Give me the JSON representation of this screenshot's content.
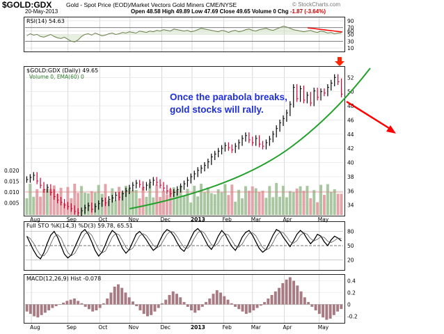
{
  "header": {
    "symbol": "$GOLD:GDX",
    "description": "Gold - Spot Price (EOD)/Market Vectors Gold Miners  CME/NYSE",
    "date": "20-May-2013",
    "ohlc": "Open 48.58  High 49.89  Low 47.69  Close 49.65  Volume 0  Chg",
    "change": "-1.87 (-3.64%)",
    "brand": "© StockCharts.com"
  },
  "annotation": {
    "line1": "Once the parabola breaks,",
    "line2": "gold stocks will rally."
  },
  "colors": {
    "price_up": "#000000",
    "price_down": "#cc0033",
    "volume_up": "#a8c7a0",
    "volume_down": "#e3a3a8",
    "parabola": "#22a02a",
    "arrow": "#ff0000",
    "rsi_line": "#6b7f4b",
    "macd_hist": "#a87a82"
  },
  "chart_data": [
    {
      "type": "line",
      "title": "RSI(14) 54.63",
      "ylim": [
        0,
        100
      ],
      "y_ticks": [
        10,
        30,
        50,
        60,
        70,
        90
      ],
      "series": [
        {
          "name": "RSI(14)",
          "values": [
            46,
            52,
            48,
            50,
            44,
            42,
            46,
            50,
            44,
            40,
            38,
            42,
            36,
            30,
            28,
            34,
            44,
            50,
            52,
            48,
            54,
            50,
            46,
            48,
            52,
            54,
            50,
            52,
            56,
            54,
            58,
            56,
            54,
            60,
            58,
            56,
            60,
            58,
            62,
            60,
            64,
            62,
            60,
            66,
            64,
            62,
            60,
            62,
            58,
            60,
            64,
            68,
            66,
            64,
            62,
            60,
            58,
            62,
            60,
            56,
            60,
            62,
            58,
            60,
            64,
            66,
            62,
            60,
            64,
            66,
            68,
            64,
            62,
            66,
            70,
            74,
            72,
            68,
            64,
            62,
            60,
            58,
            60,
            62,
            58,
            56,
            60,
            58,
            54,
            56,
            52,
            54,
            55
          ]
        }
      ]
    },
    {
      "type": "bar",
      "title": "$GOLD:GDX (Daily) 49.65",
      "subtitle": "Volume 0, EMA(60) 0",
      "x_ticks": [
        "Aug",
        "Sep",
        "Oct",
        "Nov",
        "Dec",
        "2013",
        "Feb",
        "Mar",
        "Apr",
        "May"
      ],
      "y_ticks_right": [
        34,
        36,
        38,
        40,
        42,
        44,
        46,
        48,
        50,
        52
      ],
      "y_ticks_left": [
        "0.020",
        "0.015",
        "0.010",
        "0.005"
      ],
      "ylim": [
        32.5,
        53.5
      ],
      "series": [
        {
          "name": "$GOLD:GDX close",
          "values": [
            37.6,
            37.9,
            38.2,
            37.4,
            36.8,
            36.2,
            36.5,
            35.8,
            35.2,
            34.7,
            34.4,
            34.0,
            33.8,
            33.5,
            33.1,
            32.9,
            33.2,
            33.6,
            33.9,
            33.4,
            33.8,
            34.2,
            34.6,
            34.3,
            34.8,
            35.0,
            35.4,
            35.1,
            35.6,
            36.0,
            36.4,
            36.8,
            37.1,
            36.9,
            36.5,
            36.8,
            37.2,
            37.5,
            37.2,
            36.8,
            36.4,
            36.0,
            35.6,
            35.8,
            36.2,
            36.6,
            37.0,
            37.5,
            38.0,
            38.4,
            38.9,
            39.2,
            39.6,
            40.1,
            40.8,
            41.2,
            41.6,
            42.0,
            42.4,
            42.1,
            41.8,
            42.3,
            42.8,
            43.4,
            43.8,
            43.2,
            42.8,
            43.4,
            42.6,
            42.3,
            42.8,
            43.3,
            44.0,
            44.8,
            45.6,
            46.2,
            47.0,
            48.2,
            50.6,
            49.0,
            50.4,
            48.8,
            49.5,
            48.4,
            50.1,
            49.2,
            50.0,
            49.8,
            50.6,
            51.2,
            52.0,
            51.4,
            49.65
          ]
        }
      ]
    },
    {
      "type": "line",
      "title": "Full STO %K(14,3) %D(3) 59.78, 65.51",
      "ylim": [
        0,
        100
      ],
      "y_ticks": [
        20,
        50,
        80
      ],
      "series": [
        {
          "name": "%K",
          "values": [
            70,
            55,
            40,
            28,
            22,
            35,
            55,
            72,
            80,
            68,
            50,
            32,
            24,
            30,
            46,
            62,
            78,
            84,
            74,
            58,
            40,
            28,
            36,
            52,
            70,
            82,
            76,
            60,
            44,
            34,
            42,
            58,
            74,
            80,
            72,
            62,
            50,
            40,
            46,
            62,
            76,
            84,
            80,
            70,
            56,
            44,
            38,
            50,
            66,
            80,
            86,
            78,
            64,
            50,
            42,
            54,
            70,
            82,
            74,
            60,
            48,
            40,
            52,
            68,
            78,
            82,
            72,
            58,
            44,
            36,
            42,
            56,
            72,
            84,
            80,
            68,
            58,
            48,
            60,
            74,
            82,
            76,
            64,
            54,
            62,
            74,
            70,
            58,
            50,
            62,
            70,
            66,
            59.78
          ]
        }
      ]
    },
    {
      "type": "bar",
      "title": "MACD(12,26,9) Hist -0.078",
      "y_ticks": [
        0.4,
        0.2,
        0,
        -0.2
      ],
      "ylim": [
        -0.3,
        0.5
      ],
      "series": [
        {
          "name": "Hist",
          "values": [
            -0.12,
            -0.16,
            -0.2,
            -0.22,
            -0.18,
            -0.14,
            -0.1,
            -0.06,
            -0.03,
            0.0,
            0.03,
            0.06,
            0.08,
            0.1,
            0.06,
            0.02,
            -0.04,
            -0.08,
            -0.12,
            -0.1,
            -0.06,
            0.02,
            0.1,
            0.2,
            0.3,
            0.34,
            0.28,
            0.2,
            0.12,
            0.05,
            -0.03,
            -0.1,
            -0.16,
            -0.2,
            -0.18,
            -0.12,
            -0.06,
            0.02,
            0.08,
            0.16,
            0.22,
            0.18,
            0.12,
            0.04,
            -0.04,
            -0.1,
            -0.14,
            -0.1,
            -0.04,
            0.04,
            0.1,
            0.18,
            0.24,
            0.2,
            0.14,
            0.08,
            0.02,
            -0.04,
            -0.08,
            -0.12,
            -0.16,
            -0.14,
            -0.1,
            -0.06,
            -0.02,
            0.04,
            0.1,
            0.16,
            0.22,
            0.28,
            0.36,
            0.42,
            0.46,
            0.4,
            0.32,
            0.22,
            0.12,
            0.04,
            -0.04,
            -0.1,
            -0.16,
            -0.22,
            -0.26,
            -0.24,
            -0.18,
            -0.12,
            -0.078
          ]
        }
      ]
    }
  ]
}
